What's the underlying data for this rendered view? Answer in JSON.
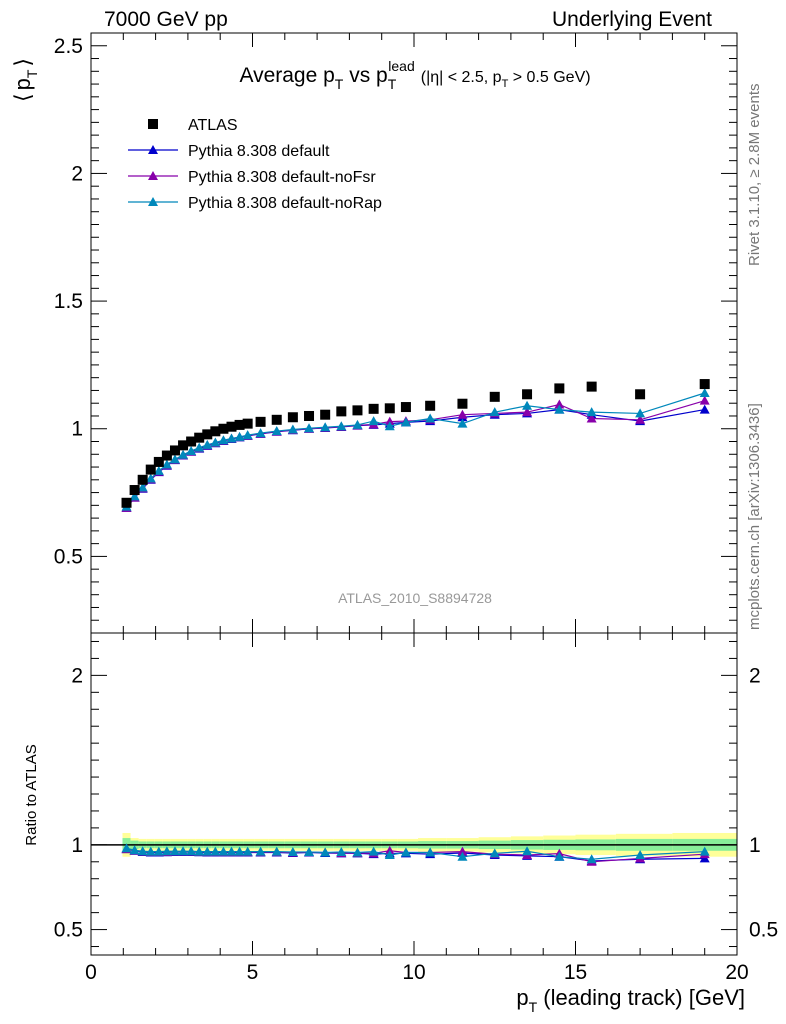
{
  "header": {
    "left": "7000 GeV pp",
    "right": "Underlying Event"
  },
  "side_labels": {
    "rivet": "Rivet 3.1.10, ≥ 2.8M events",
    "source": "mcplots.cern.ch [arXiv:1306.3436]"
  },
  "analysis_id": "ATLAS_2010_S8894728",
  "chart_data": [
    {
      "type": "scatter",
      "title": "Average pT vs pT^lead (|η| < 2.5, pT > 0.5 GeV)",
      "title_parts": {
        "main": "Average p",
        "sub1": "T",
        "vs": " vs p",
        "sub2": "T",
        "sup2": "lead",
        "cut": "(|η| < 2.5, p",
        "cut_sub": "T",
        "cut_end": " > 0.5 GeV)"
      },
      "ylabel": "⟨ pT ⟩",
      "ylabel_parts": {
        "left": "⟨",
        "p": "p",
        "sub": "T",
        "right": "⟩"
      },
      "xlim": [
        0,
        20
      ],
      "ylim": [
        0.2,
        2.55
      ],
      "yticks": [
        0.5,
        1,
        1.5,
        2,
        2.5
      ],
      "ytick_labels": [
        "0.5",
        "1",
        "1.5",
        "2",
        "2.5"
      ],
      "legend_position": "top-left",
      "x": [
        1.1,
        1.35,
        1.6,
        1.85,
        2.1,
        2.35,
        2.6,
        2.85,
        3.1,
        3.35,
        3.6,
        3.85,
        4.1,
        4.35,
        4.6,
        4.85,
        5.25,
        5.75,
        6.25,
        6.75,
        7.25,
        7.75,
        8.25,
        8.75,
        9.25,
        9.75,
        10.5,
        11.5,
        12.5,
        13.5,
        14.5,
        15.5,
        17.0,
        19.0
      ],
      "series": [
        {
          "name": "ATLAS",
          "color": "#000000",
          "marker": "square",
          "values": [
            0.71,
            0.76,
            0.8,
            0.84,
            0.87,
            0.895,
            0.915,
            0.935,
            0.95,
            0.965,
            0.978,
            0.99,
            1.0,
            1.008,
            1.015,
            1.02,
            1.027,
            1.035,
            1.045,
            1.05,
            1.055,
            1.068,
            1.072,
            1.078,
            1.08,
            1.085,
            1.09,
            1.098,
            1.125,
            1.135,
            1.158,
            1.165,
            1.135,
            1.175
          ]
        },
        {
          "name": "Pythia 8.308 default",
          "color": "#0000cc",
          "marker": "triangle",
          "values": [
            0.69,
            0.73,
            0.765,
            0.8,
            0.83,
            0.855,
            0.877,
            0.895,
            0.91,
            0.922,
            0.933,
            0.943,
            0.952,
            0.96,
            0.966,
            0.972,
            0.98,
            0.988,
            0.994,
            1.0,
            1.003,
            1.007,
            1.012,
            1.015,
            1.02,
            1.025,
            1.03,
            1.045,
            1.055,
            1.06,
            1.075,
            1.055,
            1.03,
            1.075
          ]
        },
        {
          "name": "Pythia 8.308 default-noFsr",
          "color": "#8800aa",
          "marker": "triangle",
          "values": [
            0.69,
            0.73,
            0.767,
            0.802,
            0.832,
            0.857,
            0.878,
            0.896,
            0.911,
            0.924,
            0.935,
            0.944,
            0.953,
            0.961,
            0.967,
            0.973,
            0.981,
            0.989,
            0.995,
            1.0,
            1.004,
            1.008,
            1.013,
            1.017,
            1.028,
            1.03,
            1.035,
            1.055,
            1.06,
            1.065,
            1.095,
            1.04,
            1.035,
            1.11
          ]
        },
        {
          "name": "Pythia 8.308 default-noRap",
          "color": "#0088bb",
          "marker": "triangle",
          "values": [
            0.695,
            0.735,
            0.77,
            0.805,
            0.835,
            0.86,
            0.88,
            0.898,
            0.913,
            0.926,
            0.937,
            0.946,
            0.955,
            0.962,
            0.968,
            0.975,
            0.983,
            0.991,
            0.997,
            1.002,
            1.006,
            1.01,
            1.015,
            1.03,
            1.01,
            1.025,
            1.04,
            1.02,
            1.065,
            1.09,
            1.075,
            1.065,
            1.06,
            1.14
          ]
        }
      ]
    },
    {
      "type": "scatter",
      "ylabel": "Ratio to ATLAS",
      "xlabel": "pT (leading track) [GeV]",
      "xlabel_parts": {
        "p": "p",
        "sub": "T",
        "rest": " (leading track) [GeV]"
      },
      "xlim": [
        0,
        20
      ],
      "xticks": [
        0,
        5,
        10,
        15,
        20
      ],
      "xtick_labels": [
        "0",
        "5",
        "10",
        "15",
        "20"
      ],
      "ylim": [
        0.35,
        2.25
      ],
      "yticks": [
        0.5,
        1,
        2
      ],
      "ytick_labels": [
        "0.5",
        "1",
        "2"
      ],
      "band_colors": {
        "outer": "#ffff99",
        "inner": "#88ee99"
      },
      "band_outer_halfwidth": [
        0.07,
        0.04,
        0.035,
        0.035,
        0.035,
        0.035,
        0.035,
        0.035,
        0.035,
        0.035,
        0.035,
        0.035,
        0.035,
        0.035,
        0.035,
        0.035,
        0.035,
        0.035,
        0.035,
        0.035,
        0.035,
        0.035,
        0.035,
        0.035,
        0.035,
        0.035,
        0.04,
        0.04,
        0.045,
        0.05,
        0.055,
        0.06,
        0.065,
        0.07
      ],
      "band_inner_halfwidth": [
        0.04,
        0.025,
        0.02,
        0.02,
        0.02,
        0.02,
        0.02,
        0.02,
        0.02,
        0.02,
        0.02,
        0.02,
        0.02,
        0.02,
        0.02,
        0.02,
        0.02,
        0.02,
        0.02,
        0.02,
        0.02,
        0.02,
        0.02,
        0.02,
        0.02,
        0.02,
        0.022,
        0.022,
        0.025,
        0.028,
        0.03,
        0.032,
        0.035,
        0.035
      ],
      "series": [
        {
          "name": "Pythia 8.308 default",
          "color": "#0000cc",
          "values": [
            0.975,
            0.965,
            0.958,
            0.955,
            0.955,
            0.956,
            0.958,
            0.958,
            0.958,
            0.956,
            0.955,
            0.955,
            0.955,
            0.955,
            0.955,
            0.955,
            0.955,
            0.955,
            0.952,
            0.955,
            0.952,
            0.95,
            0.95,
            0.945,
            0.95,
            0.95,
            0.945,
            0.952,
            0.94,
            0.935,
            0.93,
            0.905,
            0.915,
            0.92
          ]
        },
        {
          "name": "Pythia 8.308 default-noFsr",
          "color": "#8800aa",
          "values": [
            0.975,
            0.965,
            0.96,
            0.958,
            0.958,
            0.958,
            0.96,
            0.96,
            0.96,
            0.958,
            0.957,
            0.957,
            0.957,
            0.957,
            0.957,
            0.957,
            0.957,
            0.957,
            0.955,
            0.957,
            0.955,
            0.952,
            0.952,
            0.95,
            0.965,
            0.955,
            0.955,
            0.96,
            0.945,
            0.94,
            0.948,
            0.9,
            0.92,
            0.945
          ]
        },
        {
          "name": "Pythia 8.308 default-noRap",
          "color": "#0088bb",
          "values": [
            0.98,
            0.968,
            0.962,
            0.96,
            0.96,
            0.962,
            0.962,
            0.962,
            0.962,
            0.96,
            0.96,
            0.96,
            0.96,
            0.96,
            0.96,
            0.96,
            0.96,
            0.96,
            0.958,
            0.958,
            0.955,
            0.958,
            0.955,
            0.96,
            0.94,
            0.955,
            0.955,
            0.93,
            0.95,
            0.962,
            0.93,
            0.915,
            0.94,
            0.96
          ]
        }
      ]
    }
  ]
}
